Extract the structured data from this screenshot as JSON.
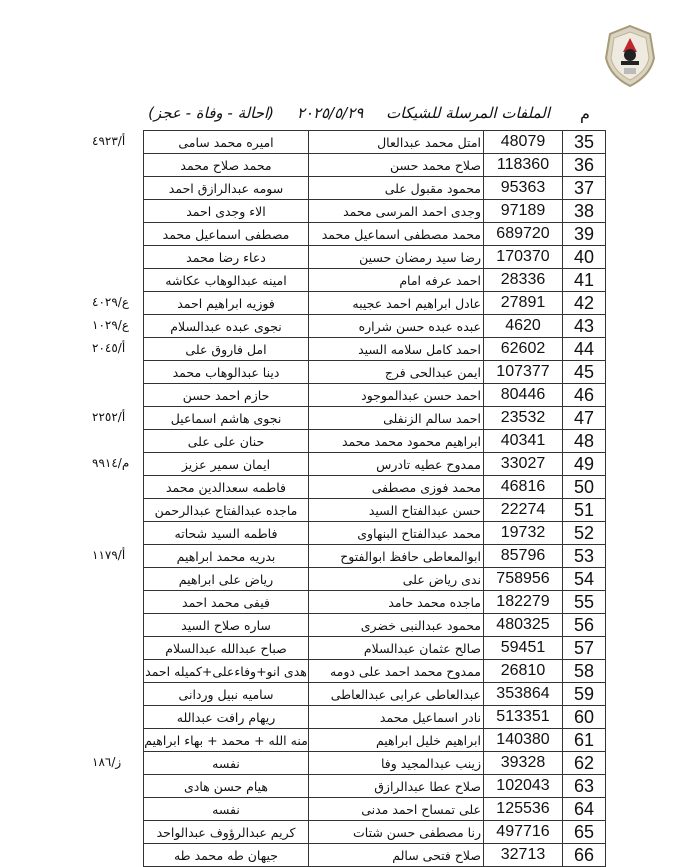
{
  "header": {
    "title": "الملفات المرسلة للشيكات",
    "date": "٢٠٢٥/٥/٢٩",
    "subtitle": "(احالة - وفاة - عجز)",
    "col_index": "م"
  },
  "rows": [
    {
      "n": "35",
      "code": "48079",
      "name": "امتل محمد عبدالعال",
      "beneficiary": "اميره محمد سامى",
      "ref": "أ/٤٩٢٣"
    },
    {
      "n": "36",
      "code": "118360",
      "name": "صلاح محمد حسن",
      "beneficiary": "محمد صلاح محمد",
      "ref": ""
    },
    {
      "n": "37",
      "code": "95363",
      "name": "محمود مقبول على",
      "beneficiary": "سومه عبدالرازق احمد",
      "ref": ""
    },
    {
      "n": "38",
      "code": "97189",
      "name": "وجدى احمد المرسى محمد",
      "beneficiary": "الاء وجدى احمد",
      "ref": ""
    },
    {
      "n": "39",
      "code": "689720",
      "name": "محمد مصطفى اسماعيل محمد",
      "beneficiary": "مصطفى اسماعيل محمد",
      "ref": ""
    },
    {
      "n": "40",
      "code": "170370",
      "name": "رضا سيد رمضان حسين",
      "beneficiary": "دعاء رضا محمد",
      "ref": ""
    },
    {
      "n": "41",
      "code": "28336",
      "name": "احمد عرفه امام",
      "beneficiary": "امينه عبدالوهاب عكاشه",
      "ref": ""
    },
    {
      "n": "42",
      "code": "27891",
      "name": "عادل ابراهيم احمد عجيبه",
      "beneficiary": "فوزيه ابراهيم احمد",
      "ref": "ع/٤٠٢٩"
    },
    {
      "n": "43",
      "code": "4620",
      "name": "عبده عبده حسن شراره",
      "beneficiary": "نجوى عبده عبدالسلام",
      "ref": "ع/١٠٢٩"
    },
    {
      "n": "44",
      "code": "62602",
      "name": "احمد كامل سلامه السيد",
      "beneficiary": "امل فاروق على",
      "ref": "أ/٢٠٤٥"
    },
    {
      "n": "45",
      "code": "107377",
      "name": "ايمن عبدالحى فرج",
      "beneficiary": "دينا عبدالوهاب محمد",
      "ref": ""
    },
    {
      "n": "46",
      "code": "80446",
      "name": "احمد حسن عبدالموجود",
      "beneficiary": "حازم احمد حسن",
      "ref": ""
    },
    {
      "n": "47",
      "code": "23532",
      "name": "احمد سالم الزنفلى",
      "beneficiary": "نجوى هاشم اسماعيل",
      "ref": "أ/٢٢٥٢"
    },
    {
      "n": "48",
      "code": "40341",
      "name": "ابراهيم محمود محمد محمد",
      "beneficiary": "حنان على على",
      "ref": ""
    },
    {
      "n": "49",
      "code": "33027",
      "name": "ممدوح عطيه تادرس",
      "beneficiary": "ايمان سمير عزيز",
      "ref": "م/٩٩١٤"
    },
    {
      "n": "50",
      "code": "46816",
      "name": "محمد فوزى مصطفى",
      "beneficiary": "فاطمه سعدالدين محمد",
      "ref": ""
    },
    {
      "n": "51",
      "code": "22274",
      "name": "حسن عبدالفتاح السيد",
      "beneficiary": "ماجده عبدالفتاح عبدالرحمن",
      "ref": ""
    },
    {
      "n": "52",
      "code": "19732",
      "name": "محمد عبدالفتاح البنهاوى",
      "beneficiary": "فاطمه السيد شحاته",
      "ref": ""
    },
    {
      "n": "53",
      "code": "85796",
      "name": "ابوالمعاطى حافظ ابوالفتوح",
      "beneficiary": "بدريه محمد ابراهيم",
      "ref": "أ/١١٧٩"
    },
    {
      "n": "54",
      "code": "758956",
      "name": "ندى رياض على",
      "beneficiary": "رياض على ابراهيم",
      "ref": ""
    },
    {
      "n": "55",
      "code": "182279",
      "name": "ماجده محمد حامد",
      "beneficiary": "فيفى محمد احمد",
      "ref": ""
    },
    {
      "n": "56",
      "code": "480325",
      "name": "محمود عبدالنبى خضرى",
      "beneficiary": "ساره صلاح السيد",
      "ref": ""
    },
    {
      "n": "57",
      "code": "59451",
      "name": "صالح عثمان عبدالسلام",
      "beneficiary": "صباح عبدالله عبدالسلام",
      "ref": ""
    },
    {
      "n": "58",
      "code": "26810",
      "name": "ممدوح محمد احمد على دومه",
      "beneficiary": "هدى انو+وفاءعلى+كميله احمد",
      "ref": ""
    },
    {
      "n": "59",
      "code": "353864",
      "name": "عبدالعاطى عرابى عبدالعاطى",
      "beneficiary": "ساميه نبيل وردانى",
      "ref": ""
    },
    {
      "n": "60",
      "code": "513351",
      "name": "نادر اسماعيل محمد",
      "beneficiary": "ريهام رافت عبدالله",
      "ref": ""
    },
    {
      "n": "61",
      "code": "140380",
      "name": "ابراهيم خليل ابراهيم",
      "beneficiary": "منه الله + محمد + بهاء ابراهيم",
      "ref": ""
    },
    {
      "n": "62",
      "code": "39328",
      "name": "زينب عبدالمجيد وفا",
      "beneficiary": "نفسه",
      "ref": "ز/١٨٦"
    },
    {
      "n": "63",
      "code": "102043",
      "name": "صلاح عطا عبدالرازق",
      "beneficiary": "هيام حسن هادى",
      "ref": ""
    },
    {
      "n": "64",
      "code": "125536",
      "name": "على تمساح احمد مدنى",
      "beneficiary": "نفسه",
      "ref": ""
    },
    {
      "n": "65",
      "code": "497716",
      "name": "رنا مصطفى حسن شتات",
      "beneficiary": "كريم عبدالرؤوف عبدالواحد",
      "ref": ""
    },
    {
      "n": "66",
      "code": "32713",
      "name": "صلاح فتحى سالم",
      "beneficiary": "جيهان طه محمد طه",
      "ref": ""
    }
  ]
}
